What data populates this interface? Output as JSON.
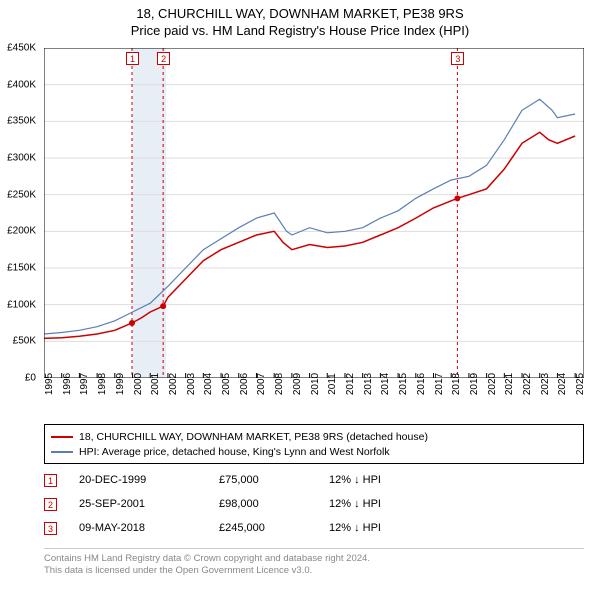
{
  "title": {
    "line1": "18, CHURCHILL WAY, DOWNHAM MARKET, PE38 9RS",
    "line2": "Price paid vs. HM Land Registry's House Price Index (HPI)"
  },
  "chart": {
    "type": "line",
    "background_color": "#ffffff",
    "grid_color": "#dddddd",
    "axis_color": "#000000",
    "xlim": [
      1995,
      2025.5
    ],
    "ylim": [
      0,
      450000
    ],
    "ytick_step": 50000,
    "yticks": [
      "£0",
      "£50K",
      "£100K",
      "£150K",
      "£200K",
      "£250K",
      "£300K",
      "£350K",
      "£400K",
      "£450K"
    ],
    "xticks": [
      "1995",
      "1996",
      "1997",
      "1998",
      "1999",
      "2000",
      "2001",
      "2002",
      "2003",
      "2004",
      "2005",
      "2006",
      "2007",
      "2008",
      "2009",
      "2010",
      "2011",
      "2012",
      "2013",
      "2014",
      "2015",
      "2016",
      "2017",
      "2018",
      "2019",
      "2020",
      "2021",
      "2022",
      "2023",
      "2024",
      "2025"
    ],
    "shaded_bands": [
      {
        "x_from": 2000.0,
        "x_to": 2001.9,
        "color": "#e8eef6"
      }
    ],
    "event_lines": [
      {
        "x": 1999.97,
        "color": "#cc0000",
        "dash": "3,3"
      },
      {
        "x": 2001.73,
        "color": "#cc0000",
        "dash": "3,3"
      },
      {
        "x": 2018.35,
        "color": "#cc0000",
        "dash": "3,3"
      }
    ],
    "series": [
      {
        "name": "price_paid",
        "color": "#cc0000",
        "width": 1.5,
        "points": [
          [
            1995,
            54000
          ],
          [
            1996,
            55000
          ],
          [
            1997,
            57000
          ],
          [
            1998,
            60000
          ],
          [
            1999,
            65000
          ],
          [
            1999.97,
            75000
          ],
          [
            2000.5,
            82000
          ],
          [
            2001,
            90000
          ],
          [
            2001.73,
            98000
          ],
          [
            2002,
            110000
          ],
          [
            2003,
            135000
          ],
          [
            2004,
            160000
          ],
          [
            2005,
            175000
          ],
          [
            2006,
            185000
          ],
          [
            2007,
            195000
          ],
          [
            2008,
            200000
          ],
          [
            2008.5,
            185000
          ],
          [
            2009,
            175000
          ],
          [
            2010,
            182000
          ],
          [
            2011,
            178000
          ],
          [
            2012,
            180000
          ],
          [
            2013,
            185000
          ],
          [
            2014,
            195000
          ],
          [
            2015,
            205000
          ],
          [
            2016,
            218000
          ],
          [
            2017,
            232000
          ],
          [
            2018.35,
            245000
          ],
          [
            2019,
            250000
          ],
          [
            2020,
            258000
          ],
          [
            2021,
            285000
          ],
          [
            2022,
            320000
          ],
          [
            2023,
            335000
          ],
          [
            2023.5,
            325000
          ],
          [
            2024,
            320000
          ],
          [
            2025,
            330000
          ]
        ],
        "markers": [
          {
            "x": 1999.97,
            "y": 75000,
            "label": "1"
          },
          {
            "x": 2001.73,
            "y": 98000,
            "label": "2"
          },
          {
            "x": 2018.35,
            "y": 245000,
            "label": "3"
          }
        ]
      },
      {
        "name": "hpi",
        "color": "#5b7fb5",
        "width": 1.2,
        "points": [
          [
            1995,
            60000
          ],
          [
            1996,
            62000
          ],
          [
            1997,
            65000
          ],
          [
            1998,
            70000
          ],
          [
            1999,
            78000
          ],
          [
            2000,
            90000
          ],
          [
            2001,
            102000
          ],
          [
            2002,
            125000
          ],
          [
            2003,
            150000
          ],
          [
            2004,
            175000
          ],
          [
            2005,
            190000
          ],
          [
            2006,
            205000
          ],
          [
            2007,
            218000
          ],
          [
            2008,
            225000
          ],
          [
            2008.7,
            200000
          ],
          [
            2009,
            195000
          ],
          [
            2010,
            205000
          ],
          [
            2011,
            198000
          ],
          [
            2012,
            200000
          ],
          [
            2013,
            205000
          ],
          [
            2014,
            218000
          ],
          [
            2015,
            228000
          ],
          [
            2016,
            245000
          ],
          [
            2017,
            258000
          ],
          [
            2018,
            270000
          ],
          [
            2019,
            275000
          ],
          [
            2020,
            290000
          ],
          [
            2021,
            325000
          ],
          [
            2022,
            365000
          ],
          [
            2023,
            380000
          ],
          [
            2023.7,
            365000
          ],
          [
            2024,
            355000
          ],
          [
            2025,
            360000
          ]
        ]
      }
    ]
  },
  "legend": {
    "items": [
      {
        "color": "#cc0000",
        "label": "18, CHURCHILL WAY, DOWNHAM MARKET, PE38 9RS (detached house)"
      },
      {
        "color": "#5b7fb5",
        "label": "HPI: Average price, detached house, King's Lynn and West Norfolk"
      }
    ]
  },
  "events": [
    {
      "num": "1",
      "date": "20-DEC-1999",
      "price": "£75,000",
      "pct": "12%",
      "arrow": "↓",
      "suffix": "HPI"
    },
    {
      "num": "2",
      "date": "25-SEP-2001",
      "price": "£98,000",
      "pct": "12%",
      "arrow": "↓",
      "suffix": "HPI"
    },
    {
      "num": "3",
      "date": "09-MAY-2018",
      "price": "£245,000",
      "pct": "12%",
      "arrow": "↓",
      "suffix": "HPI"
    }
  ],
  "footer": {
    "line1": "Contains HM Land Registry data © Crown copyright and database right 2024.",
    "line2": "This data is licensed under the Open Government Licence v3.0."
  },
  "marker_labels": {
    "m1": "1",
    "m2": "2",
    "m3": "3"
  }
}
